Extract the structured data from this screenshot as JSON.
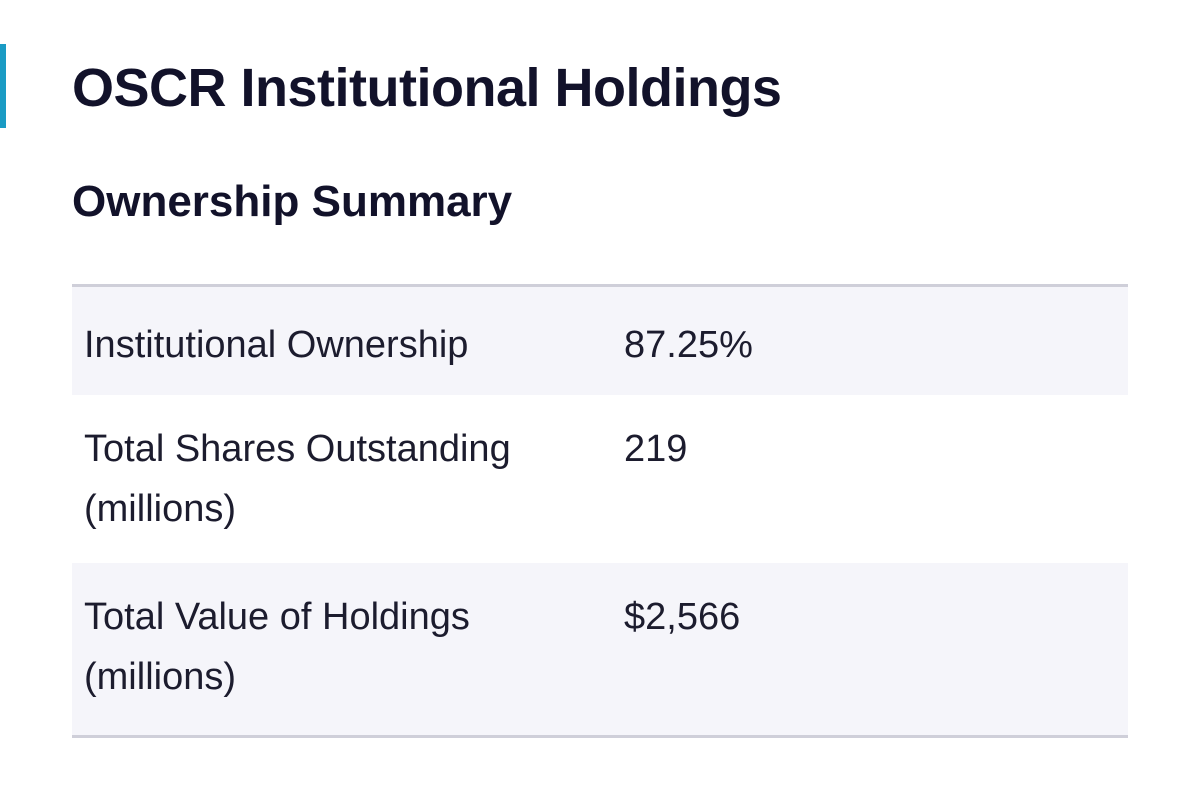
{
  "page": {
    "title": "OSCR Institutional Holdings",
    "accent_color": "#1a9bc4"
  },
  "summary": {
    "heading": "Ownership Summary",
    "rows": [
      {
        "label": "Institutional Ownership",
        "value": "87.25%"
      },
      {
        "label": "Total Shares Outstanding (millions)",
        "value": "219"
      },
      {
        "label": "Total Value of Holdings (millions)",
        "value": "$2,566"
      }
    ]
  }
}
